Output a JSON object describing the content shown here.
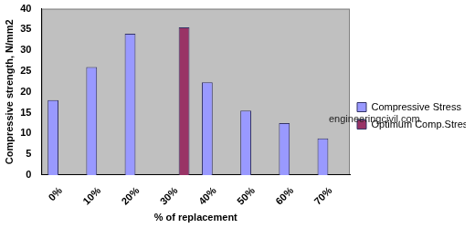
{
  "chart_data": {
    "type": "bar",
    "categories": [
      "0%",
      "10%",
      "20%",
      "30%",
      "40%",
      "50%",
      "60%",
      "70%"
    ],
    "series": [
      {
        "name": "Compressive Stress",
        "color": "#9999ff",
        "values": [
          18,
          26,
          34,
          null,
          22.3,
          15.5,
          12.5,
          8.8
        ]
      },
      {
        "name": "Optimum Comp.Stress",
        "color": "#993366",
        "values": [
          null,
          null,
          null,
          35.5,
          null,
          null,
          null,
          null
        ]
      }
    ],
    "x_label": "% of replacement",
    "y_label": "Compressive strength, N/mm2",
    "ylim": [
      0,
      40
    ],
    "yticks": [
      0,
      5,
      10,
      15,
      20,
      25,
      30,
      35,
      40
    ],
    "grid": false,
    "legend": "right",
    "annotations": [
      "engineeringcivil.com"
    ]
  }
}
